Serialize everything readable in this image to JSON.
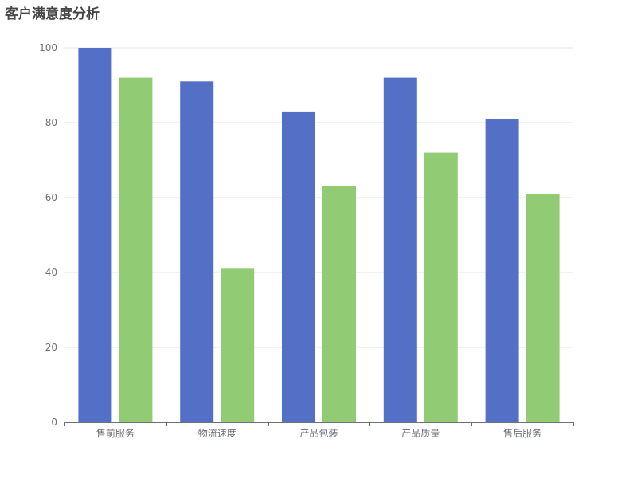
{
  "chart_data": {
    "type": "bar",
    "title": "客户满意度分析",
    "categories": [
      "售前服务",
      "物流速度",
      "产品包装",
      "产品质量",
      "售后服务"
    ],
    "series": [
      {
        "color": "#5470c6",
        "values": [
          100,
          91,
          83,
          92,
          81
        ]
      },
      {
        "color": "#91cc75",
        "values": [
          92,
          41,
          63,
          72,
          61
        ]
      }
    ],
    "ylim": [
      0,
      100
    ],
    "yticks": [
      0,
      20,
      40,
      60,
      80,
      100
    ],
    "grid": true,
    "xlabel": "",
    "ylabel": ""
  }
}
